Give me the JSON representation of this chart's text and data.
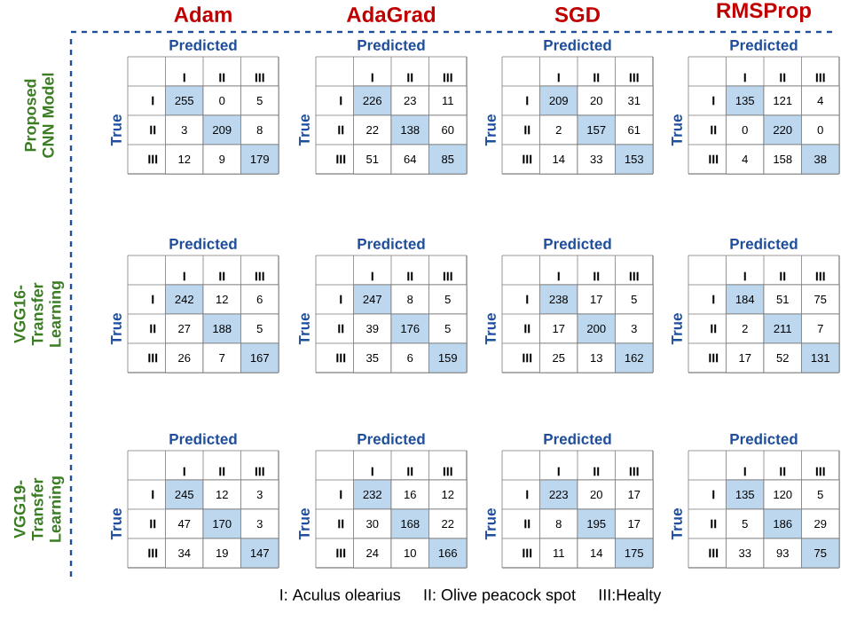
{
  "chart_data": [
    {
      "type": "heatmap",
      "title": "Adam",
      "xlabel": "Predicted",
      "ylabel": "True",
      "categories": [
        "I",
        "II",
        "III"
      ],
      "y_categories": [
        "I",
        "II",
        "III"
      ],
      "color": "#bdd7ee",
      "grid": true,
      "data_labels": true,
      "cells": [
        [
          255,
          0,
          5
        ],
        [
          3,
          209,
          8
        ],
        [
          12,
          9,
          179
        ]
      ],
      "annotations": [
        "Proposed CNN Model"
      ]
    },
    {
      "type": "heatmap",
      "title": "AdaGrad",
      "xlabel": "Predicted",
      "ylabel": "True",
      "categories": [
        "I",
        "II",
        "III"
      ],
      "y_categories": [
        "I",
        "II",
        "III"
      ],
      "color": "#bdd7ee",
      "grid": true,
      "data_labels": true,
      "cells": [
        [
          226,
          23,
          11
        ],
        [
          22,
          138,
          60
        ],
        [
          51,
          64,
          85
        ]
      ]
    },
    {
      "type": "heatmap",
      "title": "SGD",
      "xlabel": "Predicted",
      "ylabel": "True",
      "categories": [
        "I",
        "II",
        "III"
      ],
      "y_categories": [
        "I",
        "II",
        "III"
      ],
      "color": "#bdd7ee",
      "grid": true,
      "data_labels": true,
      "cells": [
        [
          209,
          20,
          31
        ],
        [
          2,
          157,
          61
        ],
        [
          14,
          33,
          153
        ]
      ]
    },
    {
      "type": "heatmap",
      "title": "RMSProp",
      "xlabel": "Predicted",
      "ylabel": "True",
      "categories": [
        "I",
        "II",
        "III"
      ],
      "y_categories": [
        "I",
        "II",
        "III"
      ],
      "color": "#bdd7ee",
      "grid": true,
      "data_labels": true,
      "cells": [
        [
          135,
          121,
          4
        ],
        [
          0,
          220,
          0
        ],
        [
          4,
          158,
          38
        ]
      ]
    },
    {
      "type": "heatmap",
      "xlabel": "Predicted",
      "ylabel": "True",
      "categories": [
        "I",
        "II",
        "III"
      ],
      "y_categories": [
        "I",
        "II",
        "III"
      ],
      "color": "#bdd7ee",
      "grid": true,
      "data_labels": true,
      "cells": [
        [
          242,
          12,
          6
        ],
        [
          27,
          188,
          5
        ],
        [
          26,
          7,
          167
        ]
      ],
      "annotations": [
        "VGG16-Transfer Learning"
      ]
    },
    {
      "type": "heatmap",
      "xlabel": "Predicted",
      "ylabel": "True",
      "categories": [
        "I",
        "II",
        "III"
      ],
      "y_categories": [
        "I",
        "II",
        "III"
      ],
      "color": "#bdd7ee",
      "grid": true,
      "data_labels": true,
      "cells": [
        [
          247,
          8,
          5
        ],
        [
          39,
          176,
          5
        ],
        [
          35,
          6,
          159
        ]
      ]
    },
    {
      "type": "heatmap",
      "xlabel": "Predicted",
      "ylabel": "True",
      "categories": [
        "I",
        "II",
        "III"
      ],
      "y_categories": [
        "I",
        "II",
        "III"
      ],
      "color": "#bdd7ee",
      "grid": true,
      "data_labels": true,
      "cells": [
        [
          238,
          17,
          5
        ],
        [
          17,
          200,
          3
        ],
        [
          25,
          13,
          162
        ]
      ]
    },
    {
      "type": "heatmap",
      "xlabel": "Predicted",
      "ylabel": "True",
      "categories": [
        "I",
        "II",
        "III"
      ],
      "y_categories": [
        "I",
        "II",
        "III"
      ],
      "color": "#bdd7ee",
      "grid": true,
      "data_labels": true,
      "cells": [
        [
          184,
          51,
          75
        ],
        [
          2,
          211,
          7
        ],
        [
          17,
          52,
          131
        ]
      ]
    },
    {
      "type": "heatmap",
      "xlabel": "Predicted",
      "ylabel": "True",
      "categories": [
        "I",
        "II",
        "III"
      ],
      "y_categories": [
        "I",
        "II",
        "III"
      ],
      "color": "#bdd7ee",
      "grid": true,
      "data_labels": true,
      "cells": [
        [
          245,
          12,
          3
        ],
        [
          47,
          170,
          3
        ],
        [
          34,
          19,
          147
        ]
      ],
      "annotations": [
        "VGG19-Transfer Learning"
      ]
    },
    {
      "type": "heatmap",
      "xlabel": "Predicted",
      "ylabel": "True",
      "categories": [
        "I",
        "II",
        "III"
      ],
      "y_categories": [
        "I",
        "II",
        "III"
      ],
      "color": "#bdd7ee",
      "grid": true,
      "data_labels": true,
      "cells": [
        [
          232,
          16,
          12
        ],
        [
          30,
          168,
          22
        ],
        [
          24,
          10,
          166
        ]
      ]
    },
    {
      "type": "heatmap",
      "xlabel": "Predicted",
      "ylabel": "True",
      "categories": [
        "I",
        "II",
        "III"
      ],
      "y_categories": [
        "I",
        "II",
        "III"
      ],
      "color": "#bdd7ee",
      "grid": true,
      "data_labels": true,
      "cells": [
        [
          223,
          20,
          17
        ],
        [
          8,
          195,
          17
        ],
        [
          11,
          14,
          175
        ]
      ]
    },
    {
      "type": "heatmap",
      "xlabel": "Predicted",
      "ylabel": "True",
      "categories": [
        "I",
        "II",
        "III"
      ],
      "y_categories": [
        "I",
        "II",
        "III"
      ],
      "color": "#bdd7ee",
      "grid": true,
      "data_labels": true,
      "cells": [
        [
          135,
          120,
          5
        ],
        [
          5,
          186,
          29
        ],
        [
          33,
          93,
          75
        ]
      ]
    },
    {
      "type": "other",
      "annotations": [
        "I: Aculus olearius",
        "II: Olive peacock spot",
        "III:Healty"
      ]
    }
  ]
}
